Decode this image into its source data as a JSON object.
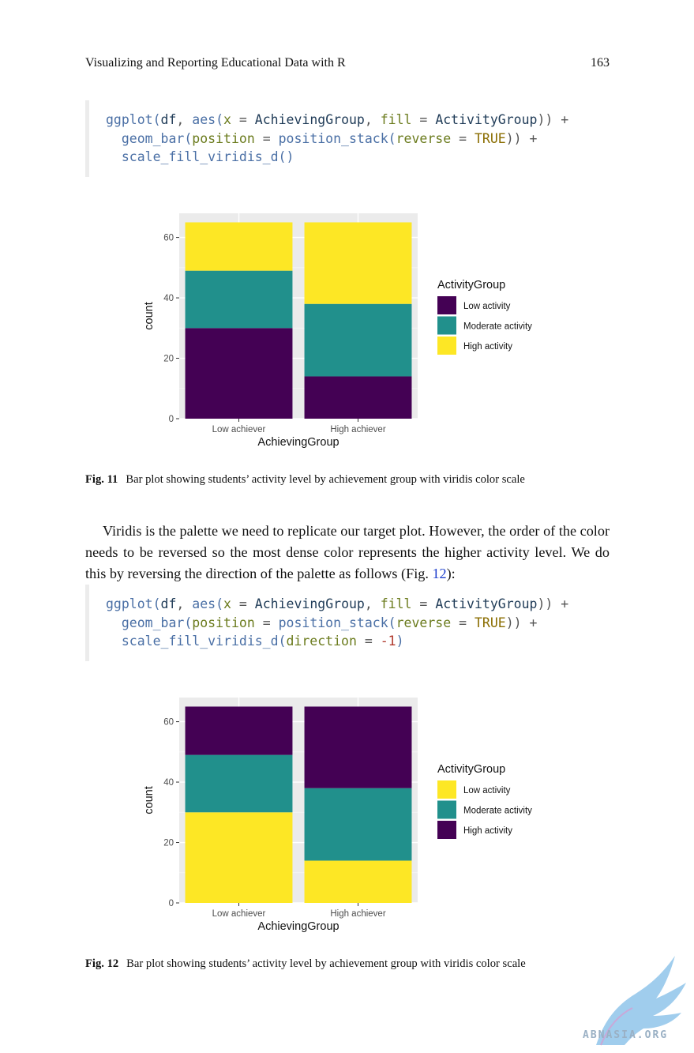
{
  "header": {
    "running_head": "Visualizing and Reporting Educational Data with R",
    "page_number": "163"
  },
  "code1": [
    [
      [
        "c-fn",
        "ggplot("
      ],
      [
        "c-sym",
        "df"
      ],
      [
        "c-op",
        ", "
      ],
      [
        "c-fn",
        "aes("
      ],
      [
        "c-arg",
        "x"
      ],
      [
        "c-op",
        " = "
      ],
      [
        "c-sym",
        "AchievingGroup"
      ],
      [
        "c-op",
        ", "
      ],
      [
        "c-arg",
        "fill"
      ],
      [
        "c-op",
        " = "
      ],
      [
        "c-sym",
        "ActivityGroup"
      ],
      [
        "c-op",
        ")) +"
      ]
    ],
    [
      [
        "c-op",
        "  "
      ],
      [
        "c-fn",
        "geom_bar("
      ],
      [
        "c-arg",
        "position"
      ],
      [
        "c-op",
        " = "
      ],
      [
        "c-fn",
        "position_stack("
      ],
      [
        "c-arg",
        "reverse"
      ],
      [
        "c-op",
        " = "
      ],
      [
        "c-bool",
        "TRUE"
      ],
      [
        "c-op",
        ")) +"
      ]
    ],
    [
      [
        "c-op",
        "  "
      ],
      [
        "c-fn",
        "scale_fill_viridis_d()"
      ]
    ]
  ],
  "code2": [
    [
      [
        "c-fn",
        "ggplot("
      ],
      [
        "c-sym",
        "df"
      ],
      [
        "c-op",
        ", "
      ],
      [
        "c-fn",
        "aes("
      ],
      [
        "c-arg",
        "x"
      ],
      [
        "c-op",
        " = "
      ],
      [
        "c-sym",
        "AchievingGroup"
      ],
      [
        "c-op",
        ", "
      ],
      [
        "c-arg",
        "fill"
      ],
      [
        "c-op",
        " = "
      ],
      [
        "c-sym",
        "ActivityGroup"
      ],
      [
        "c-op",
        ")) +"
      ]
    ],
    [
      [
        "c-op",
        "  "
      ],
      [
        "c-fn",
        "geom_bar("
      ],
      [
        "c-arg",
        "position"
      ],
      [
        "c-op",
        " = "
      ],
      [
        "c-fn",
        "position_stack("
      ],
      [
        "c-arg",
        "reverse"
      ],
      [
        "c-op",
        " = "
      ],
      [
        "c-bool",
        "TRUE"
      ],
      [
        "c-op",
        ")) +"
      ]
    ],
    [
      [
        "c-op",
        "  "
      ],
      [
        "c-fn",
        "scale_fill_viridis_d("
      ],
      [
        "c-arg",
        "direction"
      ],
      [
        "c-op",
        " = "
      ],
      [
        "c-num",
        "-1"
      ],
      [
        "c-fn",
        ")"
      ]
    ]
  ],
  "captions": {
    "fig11_label": "Fig. 11",
    "fig11_text": "Bar plot showing students’ activity level by achievement group with viridis color scale",
    "fig12_label": "Fig. 12",
    "fig12_text": "Bar plot showing students’ activity level by achievement group with viridis color scale"
  },
  "body": {
    "paragraph_before_ref": "Viridis is the palette we need to replicate our target plot. However, the order of the color needs to be reversed so the most dense color represents the higher activity level. We do this by reversing the direction of the palette as follows (Fig. ",
    "ref": "12",
    "paragraph_after_ref": "):"
  },
  "watermark": {
    "text": "ABNASIA.ORG"
  },
  "chart_data": [
    {
      "type": "bar",
      "stacked": true,
      "categories": [
        "Low achiever",
        "High achiever"
      ],
      "series": [
        {
          "name": "Low activity",
          "values": [
            30,
            14
          ],
          "color": "#440154"
        },
        {
          "name": "Moderate activity",
          "values": [
            19,
            24
          ],
          "color": "#21908C"
        },
        {
          "name": "High activity",
          "values": [
            16,
            27
          ],
          "color": "#FDE725"
        }
      ],
      "xlabel": "AchievingGroup",
      "ylabel": "count",
      "ylim": [
        0,
        68
      ],
      "yticks": [
        0,
        20,
        40,
        60
      ],
      "legend_title": "ActivityGroup",
      "legend_position": "right",
      "grid": true
    },
    {
      "type": "bar",
      "stacked": true,
      "categories": [
        "Low achiever",
        "High achiever"
      ],
      "series": [
        {
          "name": "Low activity",
          "values": [
            30,
            14
          ],
          "color": "#FDE725"
        },
        {
          "name": "Moderate activity",
          "values": [
            19,
            24
          ],
          "color": "#21908C"
        },
        {
          "name": "High activity",
          "values": [
            16,
            27
          ],
          "color": "#440154"
        }
      ],
      "xlabel": "AchievingGroup",
      "ylabel": "count",
      "ylim": [
        0,
        68
      ],
      "yticks": [
        0,
        20,
        40,
        60
      ],
      "legend_title": "ActivityGroup",
      "legend_position": "right",
      "grid": true
    }
  ]
}
